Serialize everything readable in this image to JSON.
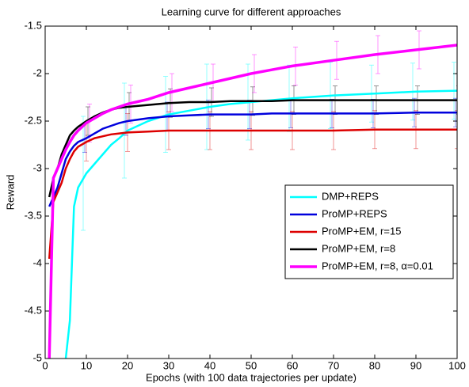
{
  "chart_data": {
    "type": "line",
    "title": "Learning curve for different approaches",
    "xlabel": "Epochs (with 100 data trajectories per update)",
    "ylabel": "Reward",
    "x": [
      1,
      2,
      3,
      4,
      5,
      6,
      7,
      8,
      10,
      12,
      14,
      16,
      18,
      20,
      25,
      30,
      35,
      40,
      45,
      50,
      55,
      60,
      70,
      80,
      90,
      100
    ],
    "xlim": [
      0,
      100
    ],
    "xticks": [
      0,
      10,
      20,
      30,
      40,
      50,
      60,
      70,
      80,
      90,
      100
    ],
    "ylim": [
      -5,
      -1.5
    ],
    "yticks": [
      -5,
      -4.5,
      -4,
      -3.5,
      -3,
      -2.5,
      -2,
      -1.5
    ],
    "grid": false,
    "legend_loc": "right",
    "series": [
      {
        "name": "DMP+REPS",
        "color": "#00ffff",
        "values": [
          null,
          null,
          null,
          null,
          -5,
          -4.6,
          -3.4,
          -3.2,
          -3.05,
          -2.95,
          -2.85,
          -2.75,
          -2.68,
          -2.6,
          -2.5,
          -2.43,
          -2.39,
          -2.35,
          -2.32,
          -2.3,
          -2.28,
          -2.26,
          -2.23,
          -2.21,
          -2.19,
          -2.18
        ],
        "errors": [
          null,
          null,
          null,
          null,
          null,
          null,
          null,
          null,
          0.6,
          null,
          null,
          null,
          null,
          0.5,
          null,
          0.4,
          null,
          0.45,
          null,
          0.4,
          null,
          0.35,
          0.35,
          0.3,
          0.3,
          0.3
        ]
      },
      {
        "name": "ProMP+REPS",
        "color": "#0000dd",
        "values": [
          -3.4,
          -3.3,
          -3.2,
          -3.05,
          -2.9,
          -2.82,
          -2.76,
          -2.72,
          -2.68,
          -2.63,
          -2.58,
          -2.55,
          -2.52,
          -2.5,
          -2.47,
          -2.45,
          -2.44,
          -2.43,
          -2.43,
          -2.43,
          -2.42,
          -2.42,
          -2.42,
          -2.42,
          -2.41,
          -2.41
        ],
        "errors": [
          null,
          null,
          null,
          null,
          null,
          null,
          null,
          null,
          0.15,
          null,
          null,
          null,
          null,
          0.15,
          null,
          0.15,
          null,
          0.15,
          null,
          0.15,
          null,
          0.15,
          0.15,
          0.15,
          0.15,
          0.15
        ]
      },
      {
        "name": "ProMP+EM, r=15",
        "color": "#dd0000",
        "values": [
          -3.95,
          -3.35,
          -3.25,
          -3.15,
          -3.0,
          -2.9,
          -2.82,
          -2.77,
          -2.72,
          -2.68,
          -2.66,
          -2.64,
          -2.63,
          -2.62,
          -2.61,
          -2.6,
          -2.6,
          -2.6,
          -2.6,
          -2.6,
          -2.6,
          -2.6,
          -2.6,
          -2.59,
          -2.59,
          -2.59
        ],
        "errors": [
          null,
          null,
          null,
          null,
          null,
          null,
          null,
          null,
          0.2,
          null,
          null,
          null,
          null,
          0.2,
          null,
          0.2,
          null,
          0.2,
          null,
          0.2,
          null,
          0.2,
          0.2,
          0.2,
          0.2,
          0.2
        ]
      },
      {
        "name": "ProMP+EM, r=8",
        "color": "#000000",
        "values": [
          -3.3,
          -3.1,
          -3.0,
          -2.85,
          -2.75,
          -2.65,
          -2.6,
          -2.56,
          -2.5,
          -2.45,
          -2.41,
          -2.38,
          -2.36,
          -2.35,
          -2.33,
          -2.31,
          -2.3,
          -2.3,
          -2.29,
          -2.29,
          -2.29,
          -2.28,
          -2.28,
          -2.28,
          -2.28,
          -2.28
        ],
        "errors": [
          null,
          null,
          null,
          null,
          null,
          null,
          null,
          null,
          0.15,
          null,
          null,
          null,
          null,
          0.15,
          null,
          0.15,
          null,
          0.15,
          null,
          0.15,
          null,
          0.15,
          0.15,
          0.15,
          0.15,
          0.15
        ]
      },
      {
        "name": "ProMP+EM, r=8, α=0.01",
        "color": "#ff00ff",
        "values": [
          -5,
          -3.1,
          -3.0,
          -2.9,
          -2.8,
          -2.72,
          -2.65,
          -2.6,
          -2.52,
          -2.47,
          -2.42,
          -2.38,
          -2.35,
          -2.32,
          -2.27,
          -2.2,
          -2.15,
          -2.1,
          -2.05,
          -2.0,
          -1.96,
          -1.92,
          -1.86,
          -1.8,
          -1.75,
          -1.7
        ],
        "errors": [
          null,
          null,
          null,
          null,
          null,
          null,
          null,
          null,
          0.2,
          null,
          null,
          null,
          null,
          0.2,
          null,
          0.2,
          null,
          0.2,
          null,
          0.2,
          null,
          0.2,
          0.2,
          0.2,
          0.2,
          0.2
        ]
      }
    ]
  }
}
